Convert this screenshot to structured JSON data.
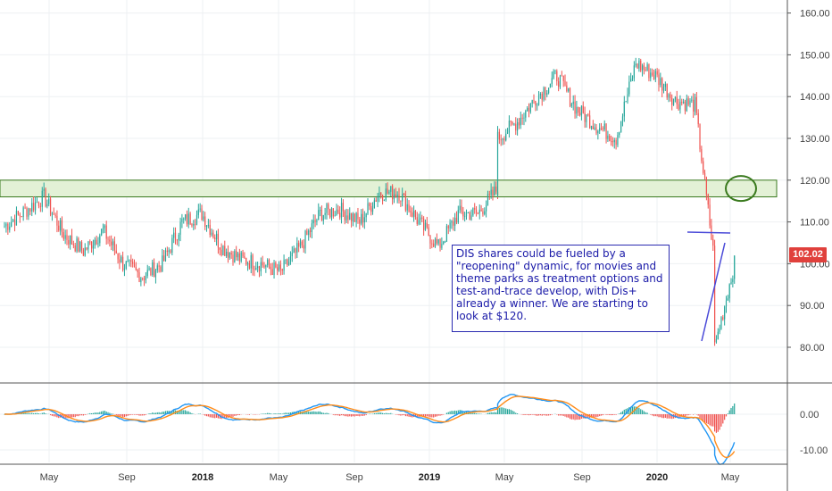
{
  "chart_data": [
    {
      "type": "candlestick",
      "symbol": "DIS",
      "title": "",
      "ylim": [
        73,
        165
      ],
      "yticks": [
        80,
        90,
        100,
        110,
        120,
        130,
        140,
        150,
        160
      ],
      "ytick_labels": [
        "80.00",
        "90.00",
        "100.00",
        "110.00",
        "120.00",
        "130.00",
        "140.00",
        "150.00",
        "160.00"
      ],
      "x_labels": [
        {
          "label": "May",
          "bold": false
        },
        {
          "label": "Sep",
          "bold": false
        },
        {
          "label": "2018",
          "bold": true
        },
        {
          "label": "May",
          "bold": false
        },
        {
          "label": "Sep",
          "bold": false
        },
        {
          "label": "2019",
          "bold": true
        },
        {
          "label": "May",
          "bold": false
        },
        {
          "label": "Sep",
          "bold": false
        },
        {
          "label": "2020",
          "bold": true
        },
        {
          "label": "May",
          "bold": false
        }
      ],
      "last_price": "102.02",
      "resistance_zone": [
        116,
        120
      ],
      "annotation": "DIS shares could be fueled by a \"reopening\" dynamic, for movies and theme parks as treatment options and test-and-trace develop, with Dis+ already a winner. We are starting to look at $120.",
      "price_path": [
        {
          "x": "2017-03",
          "price": 109
        },
        {
          "x": "2017-05",
          "price": 116
        },
        {
          "x": "2017-06",
          "price": 107
        },
        {
          "x": "2017-07",
          "price": 103
        },
        {
          "x": "2017-08",
          "price": 108
        },
        {
          "x": "2017-09",
          "price": 100
        },
        {
          "x": "2017-10",
          "price": 97
        },
        {
          "x": "2017-11",
          "price": 100
        },
        {
          "x": "2017-12",
          "price": 110
        },
        {
          "x": "2018-01",
          "price": 112
        },
        {
          "x": "2018-02",
          "price": 104
        },
        {
          "x": "2018-03",
          "price": 101
        },
        {
          "x": "2018-04",
          "price": 100
        },
        {
          "x": "2018-05",
          "price": 98
        },
        {
          "x": "2018-06",
          "price": 104
        },
        {
          "x": "2018-07",
          "price": 112
        },
        {
          "x": "2018-08",
          "price": 113
        },
        {
          "x": "2018-09",
          "price": 110
        },
        {
          "x": "2018-10",
          "price": 117
        },
        {
          "x": "2018-11",
          "price": 117
        },
        {
          "x": "2018-12",
          "price": 110
        },
        {
          "x": "2019-01",
          "price": 104
        },
        {
          "x": "2019-02",
          "price": 112
        },
        {
          "x": "2019-03",
          "price": 112
        },
        {
          "x": "2019-04",
          "price": 118
        },
        {
          "x": "2019-04",
          "price": 130
        },
        {
          "x": "2019-05",
          "price": 134
        },
        {
          "x": "2019-06",
          "price": 140
        },
        {
          "x": "2019-07",
          "price": 145
        },
        {
          "x": "2019-08",
          "price": 137
        },
        {
          "x": "2019-09",
          "price": 133
        },
        {
          "x": "2019-10",
          "price": 130
        },
        {
          "x": "2019-11",
          "price": 148
        },
        {
          "x": "2019-12",
          "price": 145
        },
        {
          "x": "2020-01",
          "price": 139
        },
        {
          "x": "2020-02",
          "price": 138
        },
        {
          "x": "2020-03",
          "price": 100
        },
        {
          "x": "2020-03",
          "price": 80
        },
        {
          "x": "2020-04",
          "price": 100
        },
        {
          "x": "2020-04",
          "price": 102
        }
      ]
    },
    {
      "type": "line",
      "indicator": "MACD",
      "ylim": [
        -12,
        6
      ],
      "yticks": [
        0,
        -10
      ],
      "ytick_labels": [
        "0.00",
        "-10.00"
      ]
    }
  ]
}
